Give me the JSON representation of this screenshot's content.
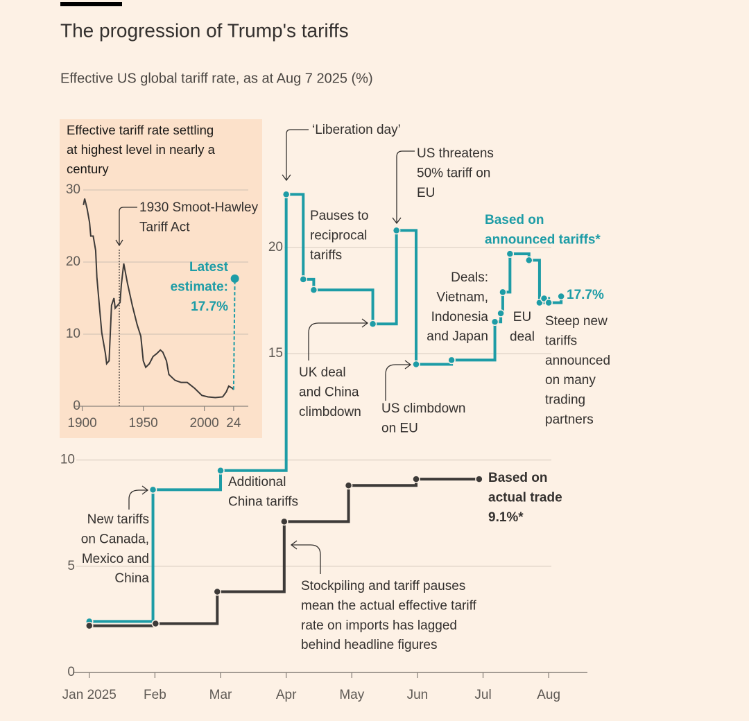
{
  "chart_data": [
    {
      "type": "line",
      "title": "The progression of Trump's tariffs",
      "subtitle": "Effective US global tariff rate, as at Aug 7 2025 (%)",
      "drawstyle": "steps-post",
      "markers": true,
      "grid": true,
      "xlim": [
        -0.23,
        7.59
      ],
      "xticks": [
        {
          "value": 0,
          "label": "Jan 2025"
        },
        {
          "value": 1,
          "label": "Feb"
        },
        {
          "value": 2,
          "label": "Mar"
        },
        {
          "value": 3,
          "label": "Apr"
        },
        {
          "value": 4,
          "label": "May"
        },
        {
          "value": 5,
          "label": "Jun"
        },
        {
          "value": 6,
          "label": "Jul"
        },
        {
          "value": 7,
          "label": "Aug"
        }
      ],
      "ylim": [
        0,
        23
      ],
      "yticks": [
        0,
        5,
        10,
        15,
        20
      ],
      "series": [
        {
          "name": "Based on announced tariffs*",
          "color": "#1d9ca6",
          "x": [
            0,
            0.97,
            2.0,
            3.0,
            3.26,
            3.42,
            4.32,
            4.68,
            4.98,
            5.52,
            6.18,
            6.27,
            6.3,
            6.41,
            6.7,
            6.86,
            6.93,
            7.0,
            7.19
          ],
          "values": [
            2.4,
            8.6,
            9.5,
            22.5,
            18.5,
            18.0,
            16.4,
            20.8,
            14.5,
            14.7,
            16.5,
            16.9,
            17.9,
            19.7,
            19.4,
            17.4,
            17.6,
            17.4,
            17.7
          ]
        },
        {
          "name": "Based on actual trade",
          "color": "#3d3a38",
          "x": [
            0,
            1.01,
            1.95,
            2.97,
            3.95,
            4.98,
            5.94
          ],
          "values": [
            2.2,
            2.3,
            3.8,
            7.1,
            8.8,
            9.1,
            9.1
          ]
        }
      ],
      "annotations": [
        [
          "‘Liberation day’"
        ],
        [
          "Pauses to",
          "reciprocal",
          "tariffs"
        ],
        [
          "US threatens",
          "50% tariff on",
          "EU"
        ],
        [
          "Based on",
          "announced tariffs*"
        ],
        [
          "Deals:",
          "Vietnam,",
          "Indonesia",
          "and Japan"
        ],
        [
          "EU",
          "deal"
        ],
        [
          "17.7%"
        ],
        [
          "Steep new",
          "tariffs",
          "announced",
          "on many",
          "trading",
          "partners"
        ],
        [
          "UK deal",
          "and China",
          "climbdown"
        ],
        [
          "US climbdown",
          "on EU"
        ],
        [
          "Additional",
          "China tariffs"
        ],
        [
          "New tariffs",
          "on Canada,",
          "Mexico and",
          "China"
        ],
        [
          "Based on",
          "actual trade",
          "9.1%*"
        ],
        [
          "Stockpiling and tariff pauses",
          "mean the actual effective tariff",
          "rate on imports has lagged",
          "behind headline figures"
        ]
      ]
    },
    {
      "type": "line",
      "title": [
        "Effective tariff rate settling",
        "at highest level in nearly a",
        "century"
      ],
      "grid": true,
      "xlim": [
        1894,
        2036
      ],
      "xticks": [
        1900,
        1950,
        2000,
        {
          "value": 2024,
          "label": "24"
        }
      ],
      "ylim": [
        0,
        30
      ],
      "yticks": [
        0,
        10,
        20,
        30
      ],
      "series": [
        {
          "name": "Effective tariff rate",
          "color": "#3d3a38",
          "x": [
            1901,
            1902,
            1904,
            1906,
            1907,
            1909,
            1911,
            1912,
            1914,
            1916,
            1919,
            1920,
            1922,
            1924,
            1926,
            1927,
            1929,
            1931,
            1932,
            1934,
            1937,
            1941,
            1945,
            1948,
            1950,
            1952,
            1955,
            1958,
            1961,
            1964,
            1966,
            1969,
            1971,
            1976,
            1981,
            1986,
            1992,
            1998,
            2003,
            2009,
            2015,
            2018,
            2020,
            2023,
            2024
          ],
          "values": [
            27.9,
            28.8,
            27.4,
            25.5,
            23.6,
            23.6,
            21.6,
            17.9,
            14.0,
            10.2,
            7.3,
            5.9,
            6.3,
            14.0,
            15.0,
            13.6,
            14.0,
            14.4,
            16.8,
            19.8,
            17.1,
            14.0,
            11.3,
            9.7,
            6.3,
            5.4,
            5.9,
            6.9,
            7.3,
            7.8,
            7.5,
            6.3,
            4.4,
            3.6,
            3.3,
            3.3,
            2.5,
            1.5,
            1.3,
            1.2,
            1.3,
            2.0,
            2.8,
            2.5,
            2.3
          ]
        },
        {
          "name": "Latest estimate",
          "color": "#1d9ca6",
          "dash": true,
          "marker": "last",
          "x": [
            2024,
            2025
          ],
          "values": [
            2.3,
            17.7
          ]
        }
      ],
      "annotations": [
        [
          "1930 Smoot-Hawley",
          "Tariff Act"
        ],
        [
          "Latest",
          "estimate:",
          "17.7%"
        ]
      ]
    }
  ]
}
